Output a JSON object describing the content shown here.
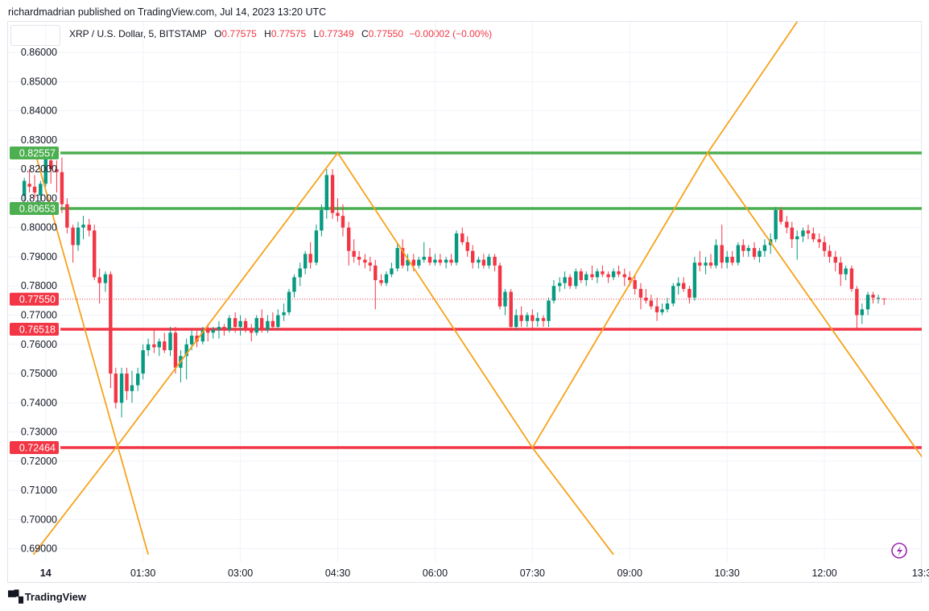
{
  "header": {
    "text": "richardmadrian published on TradingView.com, Jul 14, 2023 13:20 UTC"
  },
  "legend": {
    "symbol": "XRP / U.S. Dollar, 5, BITSTAMP",
    "o_label": "O",
    "o": "0.77575",
    "h_label": "H",
    "h": "0.77575",
    "l_label": "L",
    "l": "0.77349",
    "c_label": "C",
    "c": "0.77550",
    "change": "−0.00002 (−0.00%)"
  },
  "footer": {
    "brand": "TradingView",
    "icon": "tradingview-logo-icon"
  },
  "colors": {
    "up": "#089981",
    "down": "#f23645",
    "support_green": "#4caf50",
    "resistance_red": "#f23645",
    "fib_lines": "#f7a21b",
    "grid": "#f0f3fa"
  },
  "chart_data": {
    "type": "candlestick",
    "symbol": "XRP / U.S. Dollar",
    "interval": "5",
    "exchange": "BITSTAMP",
    "ylim": [
      0.6855,
      0.8705
    ],
    "y_ticks": [
      "0.86000",
      "0.85000",
      "0.84000",
      "0.83000",
      "0.82000",
      "0.81000",
      "0.80000",
      "0.79000",
      "0.78000",
      "0.77000",
      "0.76000",
      "0.75000",
      "0.74000",
      "0.73000",
      "0.72000",
      "0.71000",
      "0.70000",
      "0.69000"
    ],
    "x_ticks": [
      "14",
      "01:30",
      "03:00",
      "04:30",
      "06:00",
      "07:30",
      "09:00",
      "10:30",
      "12:00",
      "13:3"
    ],
    "x_tick_hours": [
      0,
      1.5,
      3,
      4.5,
      6,
      7.5,
      9,
      10.5,
      12,
      13.5
    ],
    "xlim_hours": [
      -0.58,
      13.5
    ],
    "grid": true,
    "horizontal_levels": [
      {
        "value": 0.82557,
        "label": "0.82557",
        "color": "#4caf50"
      },
      {
        "value": 0.80653,
        "label": "0.80653",
        "color": "#4caf50"
      },
      {
        "value": 0.7755,
        "label": "0.77550",
        "color": "#f23645",
        "style": "dotted-last-price"
      },
      {
        "value": 0.76518,
        "label": "0.76518",
        "color": "#f23645"
      },
      {
        "value": 0.72464,
        "label": "0.72464",
        "color": "#f23645"
      }
    ],
    "trend_lines": [
      {
        "from": [
          -0.16,
          0.8255
        ],
        "to": [
          1.58,
          0.688
        ]
      },
      {
        "from": [
          -0.19,
          0.688
        ],
        "to": [
          1.08,
          0.7246
        ]
      },
      {
        "from": [
          1.08,
          0.7246
        ],
        "to": [
          4.5,
          0.8256
        ]
      },
      {
        "from": [
          4.5,
          0.8256
        ],
        "to": [
          7.5,
          0.7246
        ]
      },
      {
        "from": [
          7.5,
          0.7246
        ],
        "to": [
          10.2,
          0.8256
        ]
      },
      {
        "from": [
          10.2,
          0.8256
        ],
        "to": [
          13.4,
          0.7246
        ]
      },
      {
        "from": [
          7.5,
          0.7246
        ],
        "to": [
          8.75,
          0.688
        ]
      },
      {
        "from": [
          10.2,
          0.8256
        ],
        "to": [
          11.58,
          0.8705
        ]
      },
      {
        "from": [
          13.4,
          0.7246
        ],
        "to": [
          13.95,
          0.708
        ]
      }
    ],
    "candles": [
      [
        -0.33,
        0.811,
        0.817,
        0.809,
        0.816
      ],
      [
        -0.25,
        0.815,
        0.82,
        0.812,
        0.814
      ],
      [
        -0.17,
        0.814,
        0.818,
        0.81,
        0.812
      ],
      [
        -0.08,
        0.811,
        0.816,
        0.808,
        0.815
      ],
      [
        0.0,
        0.815,
        0.8255,
        0.814,
        0.824
      ],
      [
        0.08,
        0.823,
        0.825,
        0.815,
        0.82
      ],
      [
        0.17,
        0.82,
        0.823,
        0.812,
        0.819
      ],
      [
        0.25,
        0.819,
        0.824,
        0.805,
        0.808
      ],
      [
        0.33,
        0.808,
        0.81,
        0.798,
        0.8
      ],
      [
        0.42,
        0.8,
        0.801,
        0.788,
        0.794
      ],
      [
        0.5,
        0.794,
        0.802,
        0.792,
        0.8
      ],
      [
        0.58,
        0.8,
        0.804,
        0.796,
        0.801
      ],
      [
        0.67,
        0.801,
        0.803,
        0.797,
        0.799
      ],
      [
        0.75,
        0.799,
        0.801,
        0.782,
        0.783
      ],
      [
        0.83,
        0.783,
        0.786,
        0.774,
        0.781
      ],
      [
        0.92,
        0.781,
        0.785,
        0.778,
        0.784
      ],
      [
        1.0,
        0.784,
        0.785,
        0.745,
        0.75
      ],
      [
        1.08,
        0.75,
        0.752,
        0.738,
        0.74
      ],
      [
        1.17,
        0.74,
        0.752,
        0.735,
        0.75
      ],
      [
        1.25,
        0.75,
        0.752,
        0.741,
        0.744
      ],
      [
        1.33,
        0.744,
        0.751,
        0.74,
        0.746
      ],
      [
        1.42,
        0.746,
        0.752,
        0.744,
        0.75
      ],
      [
        1.5,
        0.75,
        0.76,
        0.748,
        0.758
      ],
      [
        1.58,
        0.758,
        0.762,
        0.756,
        0.76
      ],
      [
        1.67,
        0.76,
        0.765,
        0.757,
        0.759
      ],
      [
        1.75,
        0.759,
        0.762,
        0.756,
        0.761
      ],
      [
        1.83,
        0.761,
        0.764,
        0.757,
        0.758
      ],
      [
        1.92,
        0.758,
        0.766,
        0.756,
        0.764
      ],
      [
        2.0,
        0.764,
        0.766,
        0.75,
        0.752
      ],
      [
        2.08,
        0.752,
        0.758,
        0.747,
        0.756
      ],
      [
        2.17,
        0.756,
        0.762,
        0.748,
        0.76
      ],
      [
        2.25,
        0.76,
        0.765,
        0.758,
        0.763
      ],
      [
        2.33,
        0.763,
        0.765,
        0.759,
        0.761
      ],
      [
        2.42,
        0.761,
        0.766,
        0.76,
        0.765
      ],
      [
        2.5,
        0.765,
        0.767,
        0.761,
        0.764
      ],
      [
        2.58,
        0.764,
        0.766,
        0.762,
        0.765
      ],
      [
        2.67,
        0.765,
        0.768,
        0.762,
        0.766
      ],
      [
        2.75,
        0.766,
        0.767,
        0.763,
        0.765
      ],
      [
        2.83,
        0.765,
        0.77,
        0.764,
        0.769
      ],
      [
        2.92,
        0.769,
        0.771,
        0.764,
        0.766
      ],
      [
        3.0,
        0.766,
        0.77,
        0.763,
        0.768
      ],
      [
        3.08,
        0.768,
        0.769,
        0.764,
        0.765
      ],
      [
        3.17,
        0.765,
        0.767,
        0.761,
        0.764
      ],
      [
        3.25,
        0.764,
        0.77,
        0.763,
        0.769
      ],
      [
        3.33,
        0.769,
        0.772,
        0.764,
        0.765
      ],
      [
        3.42,
        0.765,
        0.77,
        0.764,
        0.768
      ],
      [
        3.5,
        0.768,
        0.771,
        0.765,
        0.766
      ],
      [
        3.58,
        0.766,
        0.772,
        0.765,
        0.77
      ],
      [
        3.67,
        0.77,
        0.774,
        0.768,
        0.771
      ],
      [
        3.75,
        0.771,
        0.779,
        0.77,
        0.778
      ],
      [
        3.83,
        0.778,
        0.784,
        0.776,
        0.783
      ],
      [
        3.92,
        0.783,
        0.788,
        0.78,
        0.786
      ],
      [
        4.0,
        0.786,
        0.792,
        0.784,
        0.791
      ],
      [
        4.08,
        0.791,
        0.795,
        0.786,
        0.788
      ],
      [
        4.17,
        0.788,
        0.801,
        0.787,
        0.799
      ],
      [
        4.25,
        0.799,
        0.808,
        0.797,
        0.806
      ],
      [
        4.33,
        0.806,
        0.82,
        0.803,
        0.818
      ],
      [
        4.42,
        0.818,
        0.82,
        0.803,
        0.805
      ],
      [
        4.5,
        0.805,
        0.81,
        0.802,
        0.804
      ],
      [
        4.58,
        0.804,
        0.808,
        0.797,
        0.8
      ],
      [
        4.67,
        0.8,
        0.802,
        0.787,
        0.792
      ],
      [
        4.75,
        0.792,
        0.796,
        0.788,
        0.79
      ],
      [
        4.83,
        0.79,
        0.792,
        0.787,
        0.789
      ],
      [
        4.92,
        0.789,
        0.791,
        0.786,
        0.788
      ],
      [
        5.0,
        0.788,
        0.79,
        0.785,
        0.787
      ],
      [
        5.08,
        0.787,
        0.789,
        0.772,
        0.782
      ],
      [
        5.17,
        0.782,
        0.784,
        0.78,
        0.781
      ],
      [
        5.25,
        0.781,
        0.785,
        0.78,
        0.784
      ],
      [
        5.33,
        0.784,
        0.788,
        0.783,
        0.786
      ],
      [
        5.42,
        0.786,
        0.795,
        0.785,
        0.793
      ],
      [
        5.5,
        0.793,
        0.796,
        0.786,
        0.787
      ],
      [
        5.58,
        0.787,
        0.791,
        0.785,
        0.789
      ],
      [
        5.67,
        0.789,
        0.791,
        0.785,
        0.787
      ],
      [
        5.75,
        0.787,
        0.79,
        0.786,
        0.789
      ],
      [
        5.83,
        0.789,
        0.795,
        0.788,
        0.79
      ],
      [
        5.92,
        0.79,
        0.793,
        0.787,
        0.788
      ],
      [
        6.0,
        0.788,
        0.791,
        0.787,
        0.789
      ],
      [
        6.08,
        0.789,
        0.791,
        0.787,
        0.788
      ],
      [
        6.17,
        0.788,
        0.79,
        0.786,
        0.789
      ],
      [
        6.25,
        0.789,
        0.791,
        0.787,
        0.788
      ],
      [
        6.33,
        0.788,
        0.799,
        0.787,
        0.798
      ],
      [
        6.42,
        0.798,
        0.8,
        0.794,
        0.795
      ],
      [
        6.5,
        0.795,
        0.797,
        0.79,
        0.792
      ],
      [
        6.58,
        0.792,
        0.794,
        0.786,
        0.788
      ],
      [
        6.67,
        0.788,
        0.79,
        0.786,
        0.789
      ],
      [
        6.75,
        0.789,
        0.791,
        0.786,
        0.787
      ],
      [
        6.83,
        0.787,
        0.791,
        0.786,
        0.79
      ],
      [
        6.92,
        0.79,
        0.791,
        0.785,
        0.787
      ],
      [
        7.0,
        0.787,
        0.788,
        0.772,
        0.773
      ],
      [
        7.08,
        0.773,
        0.779,
        0.77,
        0.778
      ],
      [
        7.17,
        0.778,
        0.779,
        0.765,
        0.766
      ],
      [
        7.25,
        0.766,
        0.772,
        0.765,
        0.77
      ],
      [
        7.33,
        0.77,
        0.773,
        0.766,
        0.768
      ],
      [
        7.42,
        0.768,
        0.771,
        0.766,
        0.77
      ],
      [
        7.5,
        0.77,
        0.772,
        0.765,
        0.768
      ],
      [
        7.58,
        0.768,
        0.771,
        0.766,
        0.769
      ],
      [
        7.67,
        0.769,
        0.77,
        0.766,
        0.768
      ],
      [
        7.75,
        0.768,
        0.776,
        0.766,
        0.775
      ],
      [
        7.83,
        0.775,
        0.782,
        0.774,
        0.78
      ],
      [
        7.92,
        0.78,
        0.783,
        0.778,
        0.781
      ],
      [
        8.0,
        0.781,
        0.785,
        0.779,
        0.783
      ],
      [
        8.08,
        0.783,
        0.784,
        0.779,
        0.78
      ],
      [
        8.17,
        0.78,
        0.786,
        0.779,
        0.785
      ],
      [
        8.25,
        0.785,
        0.786,
        0.781,
        0.782
      ],
      [
        8.33,
        0.782,
        0.785,
        0.78,
        0.784
      ],
      [
        8.42,
        0.784,
        0.787,
        0.782,
        0.783
      ],
      [
        8.5,
        0.783,
        0.786,
        0.781,
        0.785
      ],
      [
        8.58,
        0.785,
        0.787,
        0.783,
        0.784
      ],
      [
        8.67,
        0.784,
        0.785,
        0.781,
        0.783
      ],
      [
        8.75,
        0.783,
        0.786,
        0.782,
        0.785
      ],
      [
        8.83,
        0.785,
        0.787,
        0.783,
        0.784
      ],
      [
        8.92,
        0.784,
        0.786,
        0.78,
        0.783
      ],
      [
        9.0,
        0.783,
        0.785,
        0.78,
        0.782
      ],
      [
        9.08,
        0.782,
        0.784,
        0.777,
        0.779
      ],
      [
        9.17,
        0.779,
        0.781,
        0.772,
        0.776
      ],
      [
        9.25,
        0.776,
        0.779,
        0.774,
        0.775
      ],
      [
        9.33,
        0.775,
        0.777,
        0.772,
        0.773
      ],
      [
        9.42,
        0.773,
        0.776,
        0.768,
        0.771
      ],
      [
        9.5,
        0.771,
        0.774,
        0.77,
        0.772
      ],
      [
        9.58,
        0.772,
        0.776,
        0.771,
        0.774
      ],
      [
        9.67,
        0.774,
        0.781,
        0.773,
        0.78
      ],
      [
        9.75,
        0.78,
        0.783,
        0.777,
        0.781
      ],
      [
        9.83,
        0.781,
        0.783,
        0.778,
        0.779
      ],
      [
        9.92,
        0.779,
        0.78,
        0.774,
        0.776
      ],
      [
        10.0,
        0.776,
        0.79,
        0.775,
        0.788
      ],
      [
        10.08,
        0.788,
        0.792,
        0.785,
        0.787
      ],
      [
        10.17,
        0.787,
        0.79,
        0.784,
        0.788
      ],
      [
        10.25,
        0.788,
        0.791,
        0.786,
        0.787
      ],
      [
        10.33,
        0.787,
        0.796,
        0.786,
        0.794
      ],
      [
        10.42,
        0.794,
        0.801,
        0.786,
        0.788
      ],
      [
        10.5,
        0.788,
        0.792,
        0.786,
        0.79
      ],
      [
        10.58,
        0.79,
        0.792,
        0.787,
        0.788
      ],
      [
        10.67,
        0.788,
        0.795,
        0.787,
        0.794
      ],
      [
        10.75,
        0.794,
        0.796,
        0.79,
        0.792
      ],
      [
        10.83,
        0.792,
        0.794,
        0.79,
        0.793
      ],
      [
        10.92,
        0.793,
        0.795,
        0.789,
        0.79
      ],
      [
        11.0,
        0.79,
        0.793,
        0.788,
        0.792
      ],
      [
        11.08,
        0.792,
        0.796,
        0.79,
        0.794
      ],
      [
        11.17,
        0.794,
        0.798,
        0.791,
        0.796
      ],
      [
        11.25,
        0.796,
        0.807,
        0.795,
        0.806
      ],
      [
        11.33,
        0.806,
        0.807,
        0.801,
        0.802
      ],
      [
        11.42,
        0.802,
        0.804,
        0.798,
        0.8
      ],
      [
        11.5,
        0.8,
        0.802,
        0.793,
        0.796
      ],
      [
        11.58,
        0.796,
        0.799,
        0.789,
        0.797
      ],
      [
        11.67,
        0.797,
        0.8,
        0.795,
        0.799
      ],
      [
        11.75,
        0.799,
        0.801,
        0.796,
        0.798
      ],
      [
        11.83,
        0.798,
        0.8,
        0.795,
        0.796
      ],
      [
        11.92,
        0.796,
        0.798,
        0.793,
        0.795
      ],
      [
        12.0,
        0.795,
        0.797,
        0.79,
        0.792
      ],
      [
        12.08,
        0.792,
        0.794,
        0.788,
        0.79
      ],
      [
        12.17,
        0.79,
        0.792,
        0.785,
        0.788
      ],
      [
        12.25,
        0.788,
        0.79,
        0.78,
        0.784
      ],
      [
        12.33,
        0.784,
        0.787,
        0.782,
        0.786
      ],
      [
        12.42,
        0.786,
        0.787,
        0.778,
        0.779
      ],
      [
        12.5,
        0.779,
        0.78,
        0.765,
        0.77
      ],
      [
        12.58,
        0.77,
        0.774,
        0.767,
        0.772
      ],
      [
        12.67,
        0.772,
        0.778,
        0.77,
        0.777
      ],
      [
        12.75,
        0.777,
        0.778,
        0.774,
        0.776
      ],
      [
        12.83,
        0.776,
        0.777,
        0.774,
        0.776
      ],
      [
        12.92,
        0.77575,
        0.77575,
        0.77349,
        0.7755
      ]
    ]
  }
}
